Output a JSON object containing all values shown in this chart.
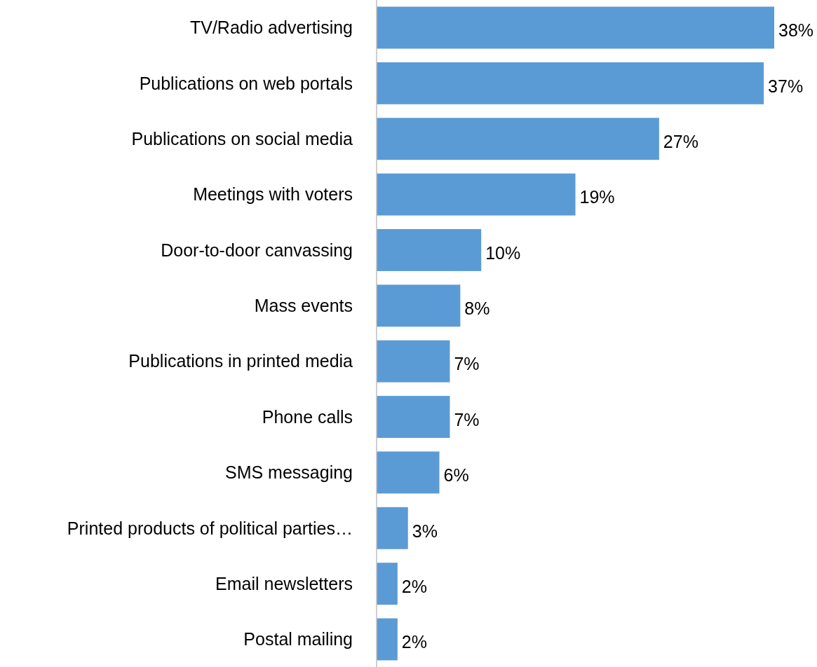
{
  "chart_data": {
    "type": "bar",
    "orientation": "horizontal",
    "categories": [
      "TV/Radio advertising",
      "Publications on web portals",
      "Publications on social media",
      "Meetings with voters",
      "Door-to-door canvassing",
      "Mass events",
      "Publications in printed media",
      "Phone calls",
      "SMS messaging",
      "Printed products of political parties…",
      "Email newsletters",
      "Postal mailing"
    ],
    "values": [
      38,
      37,
      27,
      19,
      10,
      8,
      7,
      7,
      6,
      3,
      2,
      2
    ],
    "value_labels": [
      "38%",
      "37%",
      "27%",
      "19%",
      "10%",
      "8%",
      "7%",
      "7%",
      "6%",
      "3%",
      "2%",
      "2%"
    ],
    "color": "#5b9bd5"
  }
}
